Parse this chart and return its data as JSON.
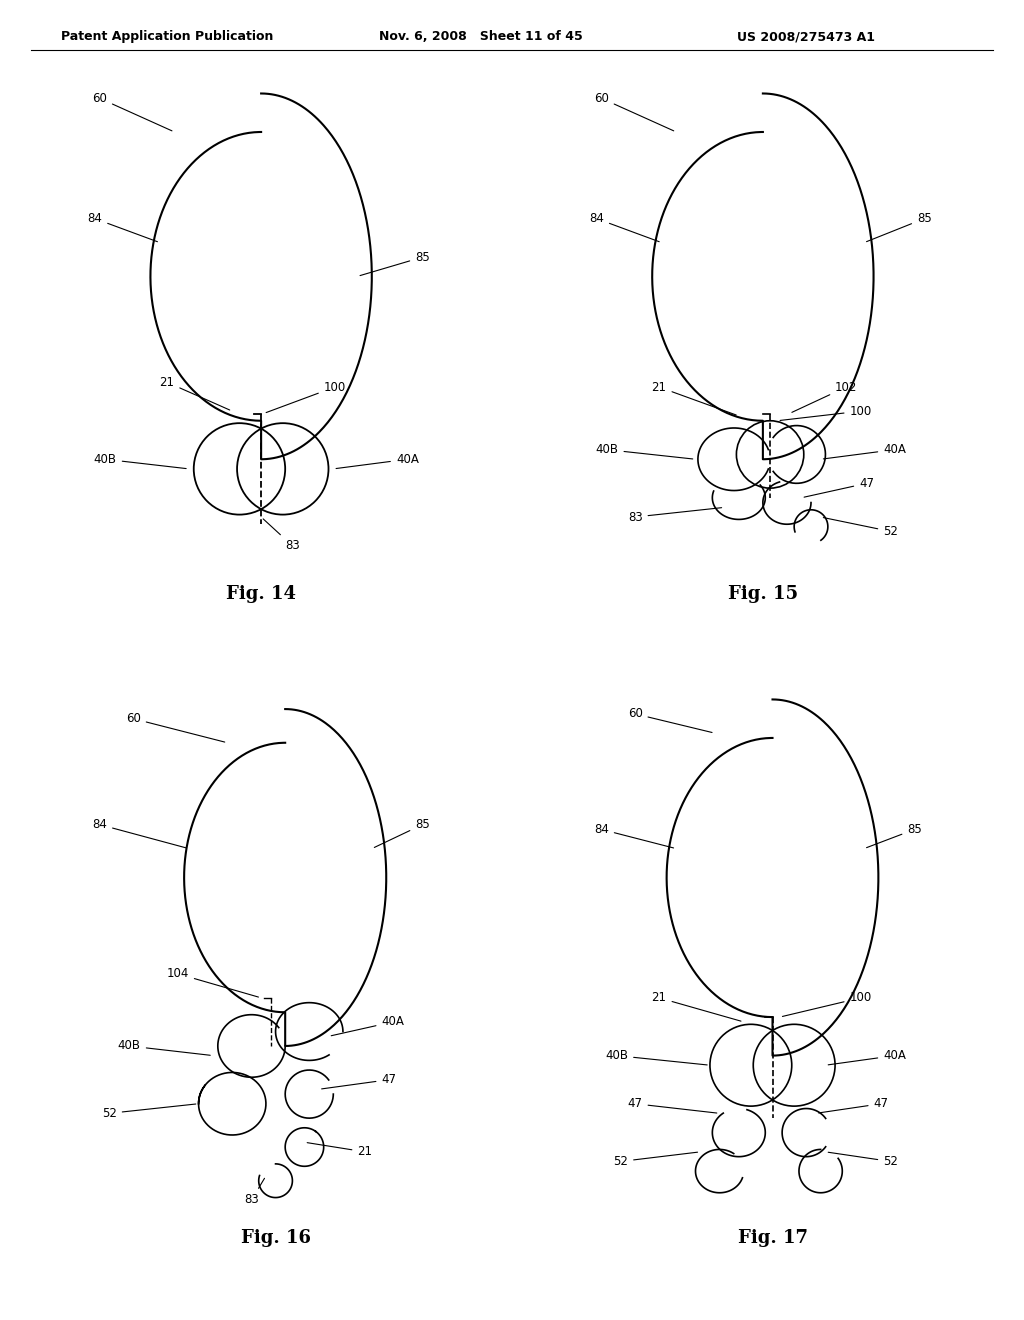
{
  "header_left": "Patent Application Publication",
  "header_mid": "Nov. 6, 2008   Sheet 11 of 45",
  "header_right": "US 2008/275473 A1",
  "background_color": "#ffffff"
}
